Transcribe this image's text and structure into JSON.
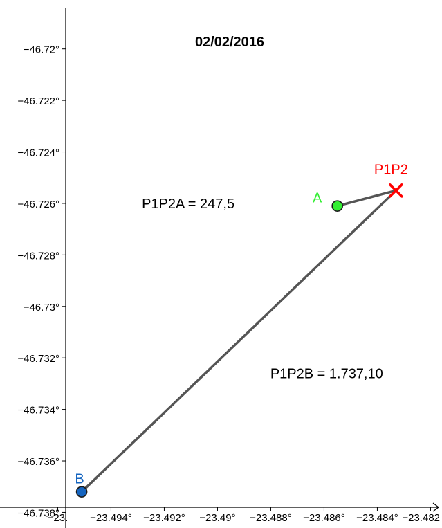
{
  "title": "02/02/2016",
  "chart_data": {
    "type": "scatter",
    "xlim": [
      -23.4957,
      -23.4817
    ],
    "ylim": [
      -46.7378,
      -46.7181
    ],
    "x_ticks": [
      {
        "value": -23.496,
        "label": "−23."
      },
      {
        "value": -23.494,
        "label": "−23.494°"
      },
      {
        "value": -23.492,
        "label": "−23.492°"
      },
      {
        "value": -23.49,
        "label": "−23.49°"
      },
      {
        "value": -23.488,
        "label": "−23.488°"
      },
      {
        "value": -23.486,
        "label": "−23.486°"
      },
      {
        "value": -23.484,
        "label": "−23.484°"
      },
      {
        "value": -23.482,
        "label": "−23.482"
      }
    ],
    "y_ticks": [
      {
        "value": -46.72,
        "label": "−46.72°"
      },
      {
        "value": -46.722,
        "label": "−46.722°"
      },
      {
        "value": -46.724,
        "label": "−46.724°"
      },
      {
        "value": -46.726,
        "label": "−46.726°"
      },
      {
        "value": -46.728,
        "label": "−46.728°"
      },
      {
        "value": -46.73,
        "label": "−46.73°"
      },
      {
        "value": -46.732,
        "label": "−46.732°"
      },
      {
        "value": -46.734,
        "label": "−46.734°"
      },
      {
        "value": -46.736,
        "label": "−46.736°"
      },
      {
        "value": -46.738,
        "label": "−46.738°"
      }
    ],
    "points": [
      {
        "name": "A",
        "x": -23.4855,
        "y": -46.7261,
        "color": "#33ee33",
        "marker": "circle"
      },
      {
        "name": "P1P2",
        "x": -23.4833,
        "y": -46.7255,
        "color": "#ff0000",
        "marker": "cross"
      },
      {
        "name": "B",
        "x": -23.4951,
        "y": -46.7372,
        "color": "#1565c0",
        "marker": "circle"
      }
    ],
    "segments": [
      {
        "from": "P1P2",
        "to": "A",
        "color": "#555555"
      },
      {
        "from": "P1P2",
        "to": "B",
        "color": "#555555"
      }
    ],
    "annotations": [
      {
        "text": "P1P2A = 247,5",
        "x": -23.4911,
        "y": -46.726
      },
      {
        "text": "P1P2B = 1.737,10",
        "x": -23.4859,
        "y": -46.7326
      }
    ]
  }
}
